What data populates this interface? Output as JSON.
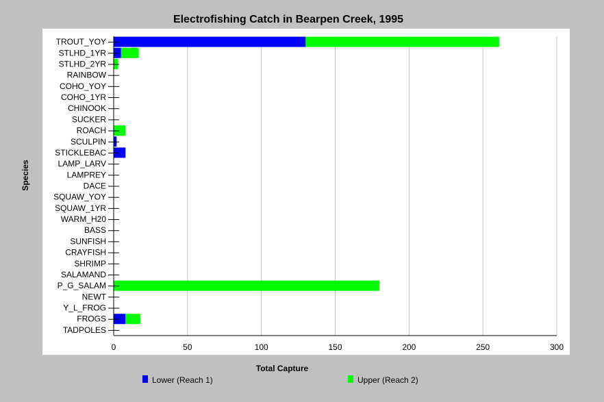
{
  "chart_data": {
    "type": "bar",
    "orientation": "horizontal",
    "stacked": true,
    "title": "Electrofishing Catch in Bearpen Creek, 1995",
    "xlabel": "Total Capture",
    "ylabel": "Species",
    "xlim": [
      0,
      300
    ],
    "xticks": [
      0,
      50,
      100,
      150,
      200,
      250,
      300
    ],
    "grid": "vertical",
    "legend_position": "bottom",
    "categories": [
      "TROUT_YOY",
      "STLHD_1YR",
      "STLHD_2YR",
      "RAINBOW",
      "COHO_YOY",
      "COHO_1YR",
      "CHINOOK",
      "SUCKER",
      "ROACH",
      "SCULPIN",
      "STICKLEBAC",
      "LAMP_LARV",
      "LAMPREY",
      "DACE",
      "SQUAW_YOY",
      "SQUAW_1YR",
      "WARM_H20",
      "BASS",
      "SUNFISH",
      "CRAYFISH",
      "SHRIMP",
      "SALAMAND",
      "P_G_SALAM",
      "NEWT",
      "Y_L_FROG",
      "FROGS",
      "TADPOLES"
    ],
    "series": [
      {
        "name": "Lower (Reach 1)",
        "color": "#0000ff",
        "values": [
          130,
          5,
          0,
          0,
          0,
          0,
          0,
          0,
          0,
          2,
          8,
          0,
          0,
          0,
          0,
          0,
          0,
          0,
          0,
          0,
          0,
          0,
          0,
          0,
          0,
          8,
          0
        ]
      },
      {
        "name": "Upper (Reach 2)",
        "color": "#00ff00",
        "values": [
          131,
          12,
          3,
          0,
          0,
          0,
          0,
          0,
          8,
          0,
          0,
          0,
          0,
          0,
          0,
          0,
          0,
          0,
          0,
          0,
          0,
          0,
          180,
          0,
          0,
          10,
          0
        ]
      }
    ]
  },
  "colors": {
    "background": "#c0c0c0",
    "plot_background": "#ffffff",
    "grid": "#c0c0c0"
  }
}
